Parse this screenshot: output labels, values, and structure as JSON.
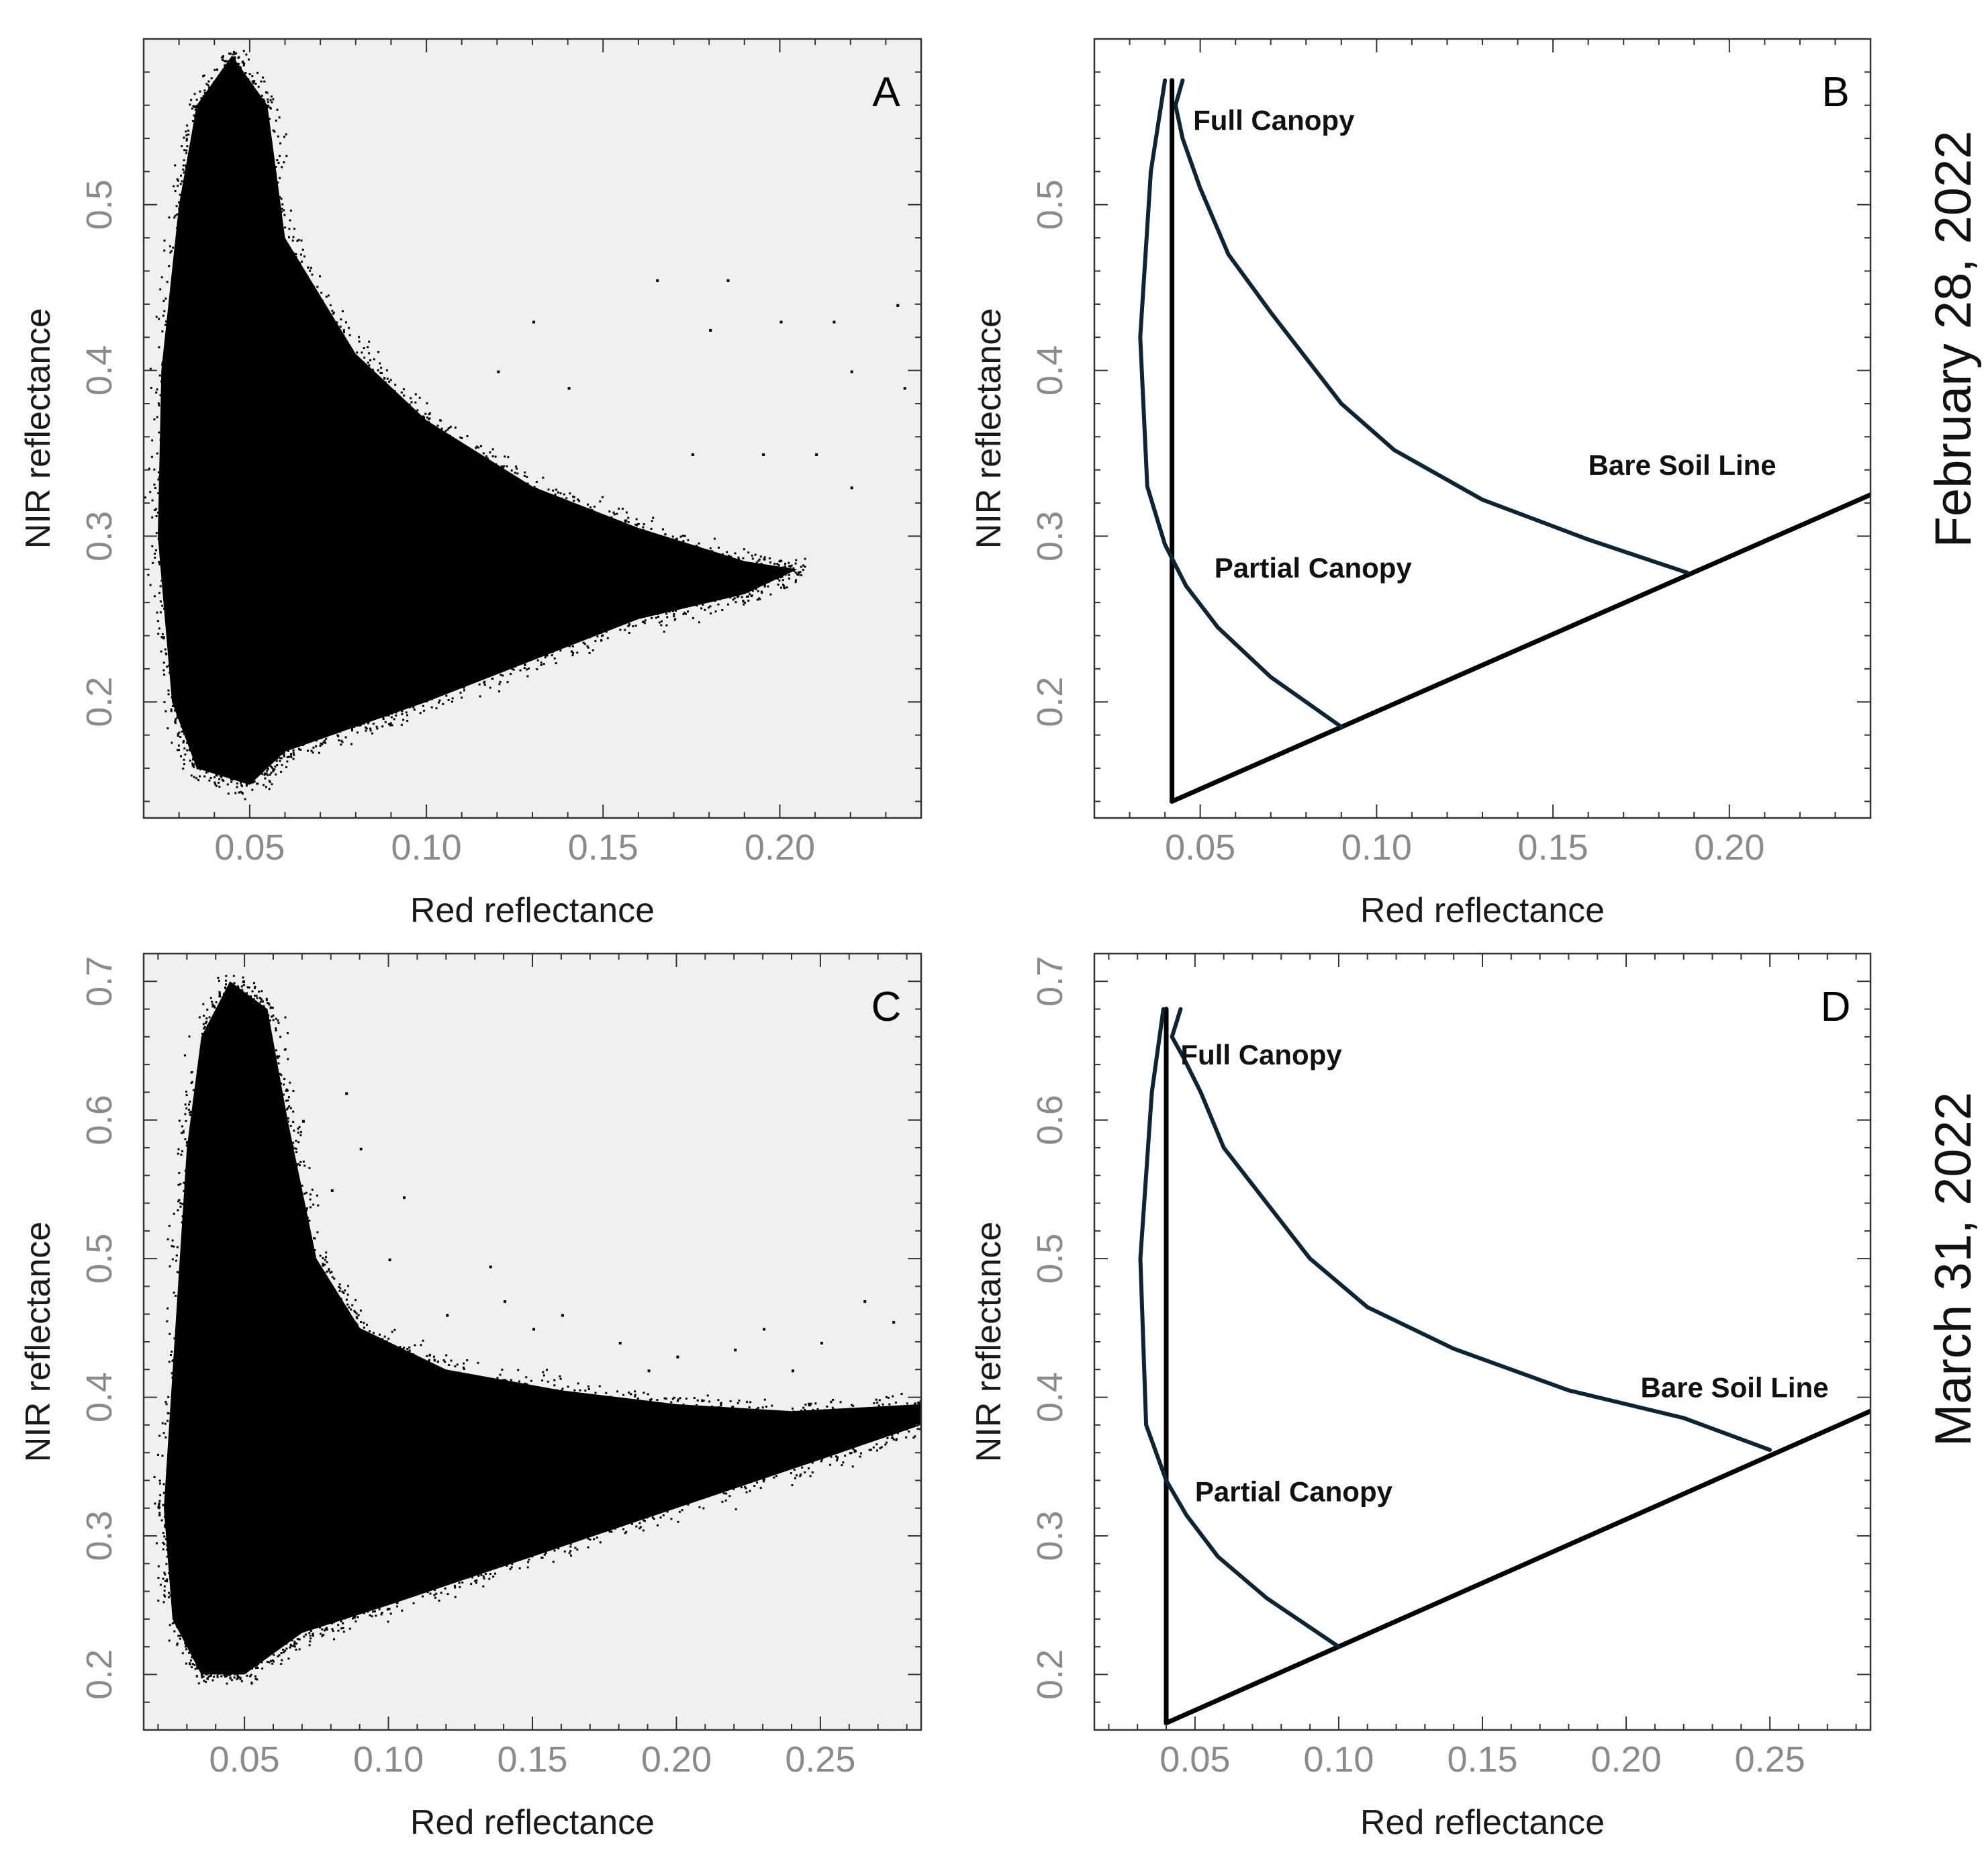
{
  "figure": {
    "dates": [
      "February 28, 2022",
      "March 31, 2022"
    ]
  },
  "chart_data": [
    {
      "panel": "A",
      "type": "scatter",
      "xlabel": "Red reflectance",
      "ylabel": "NIR reflectance",
      "xlim": [
        0.02,
        0.24
      ],
      "ylim": [
        0.13,
        0.6
      ],
      "xticks": [
        0.05,
        0.1,
        0.15,
        0.2
      ],
      "xtick_labels": [
        "0.05",
        "0.10",
        "0.15",
        "0.20"
      ],
      "yticks": [
        0.2,
        0.3,
        0.4,
        0.5
      ],
      "ytick_labels": [
        "0.2",
        "0.3",
        "0.4",
        "0.5"
      ],
      "background_color": "#f0f0f0",
      "point_color": "#000000",
      "density_envelope": [
        [
          0.035,
          0.56
        ],
        [
          0.045,
          0.59
        ],
        [
          0.055,
          0.56
        ],
        [
          0.06,
          0.48
        ],
        [
          0.08,
          0.41
        ],
        [
          0.1,
          0.37
        ],
        [
          0.13,
          0.33
        ],
        [
          0.16,
          0.305
        ],
        [
          0.19,
          0.285
        ],
        [
          0.205,
          0.28
        ],
        [
          0.19,
          0.265
        ],
        [
          0.16,
          0.25
        ],
        [
          0.13,
          0.225
        ],
        [
          0.1,
          0.2
        ],
        [
          0.08,
          0.185
        ],
        [
          0.06,
          0.17
        ],
        [
          0.05,
          0.15
        ],
        [
          0.035,
          0.16
        ],
        [
          0.028,
          0.2
        ],
        [
          0.024,
          0.3
        ],
        [
          0.025,
          0.4
        ],
        [
          0.03,
          0.5
        ]
      ],
      "outliers": [
        [
          0.165,
          0.455
        ],
        [
          0.185,
          0.455
        ],
        [
          0.2,
          0.43
        ],
        [
          0.215,
          0.43
        ],
        [
          0.22,
          0.4
        ],
        [
          0.235,
          0.39
        ],
        [
          0.233,
          0.44
        ],
        [
          0.18,
          0.425
        ],
        [
          0.13,
          0.43
        ],
        [
          0.12,
          0.4
        ],
        [
          0.14,
          0.39
        ],
        [
          0.21,
          0.35
        ],
        [
          0.22,
          0.33
        ],
        [
          0.195,
          0.35
        ],
        [
          0.175,
          0.35
        ]
      ]
    },
    {
      "panel": "B",
      "type": "line",
      "xlabel": "Red reflectance",
      "ylabel": "NIR reflectance",
      "xlim": [
        0.02,
        0.24
      ],
      "ylim": [
        0.13,
        0.6
      ],
      "xticks": [
        0.05,
        0.1,
        0.15,
        0.2
      ],
      "xtick_labels": [
        "0.05",
        "0.10",
        "0.15",
        "0.20"
      ],
      "yticks": [
        0.2,
        0.3,
        0.4,
        0.5
      ],
      "ytick_labels": [
        "0.2",
        "0.3",
        "0.4",
        "0.5"
      ],
      "background_color": "#ffffff",
      "series": [
        {
          "name": "Bare Soil Line",
          "color": "#000000",
          "points": [
            [
              0.042,
              0.14
            ],
            [
              0.24,
              0.325
            ]
          ]
        },
        {
          "name": "Vertical line",
          "color": "#000000",
          "points": [
            [
              0.042,
              0.14
            ],
            [
              0.042,
              0.575
            ]
          ]
        },
        {
          "name": "Full canopy envelope",
          "color": "#0f2433",
          "points": [
            [
              0.045,
              0.575
            ],
            [
              0.043,
              0.56
            ],
            [
              0.045,
              0.54
            ],
            [
              0.05,
              0.51
            ],
            [
              0.058,
              0.47
            ],
            [
              0.07,
              0.435
            ],
            [
              0.09,
              0.38
            ],
            [
              0.105,
              0.352
            ],
            [
              0.13,
              0.322
            ],
            [
              0.16,
              0.298
            ],
            [
              0.188,
              0.278
            ]
          ]
        },
        {
          "name": "Partial canopy envelope",
          "color": "#0f2433",
          "points": [
            [
              0.04,
              0.575
            ],
            [
              0.036,
              0.52
            ],
            [
              0.033,
              0.42
            ],
            [
              0.035,
              0.33
            ],
            [
              0.04,
              0.295
            ],
            [
              0.046,
              0.27
            ],
            [
              0.055,
              0.245
            ],
            [
              0.07,
              0.215
            ],
            [
              0.09,
              0.185
            ]
          ]
        }
      ],
      "annotations": [
        {
          "text": "Full Canopy",
          "x": 0.048,
          "y": 0.545
        },
        {
          "text": "Partial Canopy",
          "x": 0.054,
          "y": 0.275
        },
        {
          "text": "Bare Soil Line",
          "x": 0.16,
          "y": 0.337
        }
      ]
    },
    {
      "panel": "C",
      "type": "scatter",
      "xlabel": "Red reflectance",
      "ylabel": "NIR reflectance",
      "xlim": [
        0.015,
        0.285
      ],
      "ylim": [
        0.16,
        0.72
      ],
      "xticks": [
        0.05,
        0.1,
        0.15,
        0.2,
        0.25
      ],
      "xtick_labels": [
        "0.05",
        "0.10",
        "0.15",
        "0.20",
        "0.25"
      ],
      "yticks": [
        0.2,
        0.3,
        0.4,
        0.5,
        0.6,
        0.7
      ],
      "ytick_labels": [
        "0.2",
        "0.3",
        "0.4",
        "0.5",
        "0.6",
        "0.7"
      ],
      "background_color": "#f0f0f0",
      "point_color": "#000000",
      "density_envelope": [
        [
          0.035,
          0.66
        ],
        [
          0.045,
          0.7
        ],
        [
          0.058,
          0.68
        ],
        [
          0.065,
          0.6
        ],
        [
          0.075,
          0.5
        ],
        [
          0.09,
          0.45
        ],
        [
          0.12,
          0.42
        ],
        [
          0.16,
          0.405
        ],
        [
          0.2,
          0.395
        ],
        [
          0.24,
          0.39
        ],
        [
          0.285,
          0.395
        ],
        [
          0.285,
          0.38
        ],
        [
          0.25,
          0.355
        ],
        [
          0.2,
          0.32
        ],
        [
          0.15,
          0.285
        ],
        [
          0.1,
          0.25
        ],
        [
          0.07,
          0.23
        ],
        [
          0.05,
          0.2
        ],
        [
          0.035,
          0.2
        ],
        [
          0.025,
          0.24
        ],
        [
          0.022,
          0.32
        ],
        [
          0.026,
          0.45
        ],
        [
          0.03,
          0.58
        ]
      ],
      "outliers": [
        [
          0.08,
          0.55
        ],
        [
          0.1,
          0.5
        ],
        [
          0.105,
          0.545
        ],
        [
          0.135,
          0.495
        ],
        [
          0.12,
          0.46
        ],
        [
          0.15,
          0.45
        ],
        [
          0.18,
          0.44
        ],
        [
          0.2,
          0.43
        ],
        [
          0.22,
          0.435
        ],
        [
          0.24,
          0.42
        ],
        [
          0.265,
          0.47
        ],
        [
          0.275,
          0.455
        ],
        [
          0.25,
          0.44
        ],
        [
          0.23,
          0.45
        ],
        [
          0.09,
          0.58
        ],
        [
          0.07,
          0.6
        ],
        [
          0.085,
          0.62
        ],
        [
          0.16,
          0.46
        ],
        [
          0.14,
          0.47
        ],
        [
          0.19,
          0.42
        ]
      ]
    },
    {
      "panel": "D",
      "type": "line",
      "xlabel": "Red reflectance",
      "ylabel": "NIR reflectance",
      "xlim": [
        0.015,
        0.285
      ],
      "ylim": [
        0.16,
        0.72
      ],
      "xticks": [
        0.05,
        0.1,
        0.15,
        0.2,
        0.25
      ],
      "xtick_labels": [
        "0.05",
        "0.10",
        "0.15",
        "0.20",
        "0.25"
      ],
      "yticks": [
        0.2,
        0.3,
        0.4,
        0.5,
        0.6,
        0.7
      ],
      "ytick_labels": [
        "0.2",
        "0.3",
        "0.4",
        "0.5",
        "0.6",
        "0.7"
      ],
      "background_color": "#ffffff",
      "series": [
        {
          "name": "Bare Soil Line",
          "color": "#000000",
          "points": [
            [
              0.04,
              0.165
            ],
            [
              0.285,
              0.39
            ]
          ]
        },
        {
          "name": "Vertical line",
          "color": "#000000",
          "points": [
            [
              0.04,
              0.165
            ],
            [
              0.04,
              0.68
            ]
          ]
        },
        {
          "name": "Full canopy envelope",
          "color": "#0f2433",
          "points": [
            [
              0.045,
              0.68
            ],
            [
              0.042,
              0.66
            ],
            [
              0.046,
              0.645
            ],
            [
              0.052,
              0.62
            ],
            [
              0.06,
              0.58
            ],
            [
              0.075,
              0.54
            ],
            [
              0.09,
              0.5
            ],
            [
              0.11,
              0.465
            ],
            [
              0.14,
              0.435
            ],
            [
              0.18,
              0.405
            ],
            [
              0.22,
              0.385
            ],
            [
              0.25,
              0.362
            ]
          ]
        },
        {
          "name": "Partial canopy envelope",
          "color": "#0f2433",
          "points": [
            [
              0.039,
              0.68
            ],
            [
              0.035,
              0.62
            ],
            [
              0.031,
              0.5
            ],
            [
              0.033,
              0.38
            ],
            [
              0.04,
              0.34
            ],
            [
              0.047,
              0.315
            ],
            [
              0.058,
              0.285
            ],
            [
              0.075,
              0.255
            ],
            [
              0.1,
              0.22
            ]
          ]
        }
      ],
      "annotations": [
        {
          "text": "Full Canopy",
          "x": 0.045,
          "y": 0.64
        },
        {
          "text": "Partial Canopy",
          "x": 0.05,
          "y": 0.325
        },
        {
          "text": "Bare Soil Line",
          "x": 0.205,
          "y": 0.4
        }
      ]
    }
  ]
}
